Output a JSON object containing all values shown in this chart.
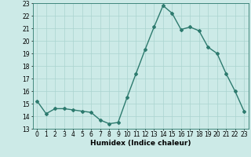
{
  "x": [
    0,
    1,
    2,
    3,
    4,
    5,
    6,
    7,
    8,
    9,
    10,
    11,
    12,
    13,
    14,
    15,
    16,
    17,
    18,
    19,
    20,
    21,
    22,
    23
  ],
  "y": [
    15.2,
    14.2,
    14.6,
    14.6,
    14.5,
    14.4,
    14.3,
    13.7,
    13.4,
    13.5,
    15.5,
    17.4,
    19.3,
    21.1,
    22.8,
    22.2,
    20.9,
    21.1,
    20.8,
    19.5,
    19.0,
    17.4,
    16.0,
    14.4
  ],
  "line_color": "#2d7a6e",
  "marker": "D",
  "marker_size": 2.0,
  "bg_color": "#cceae7",
  "grid_color": "#aad4d0",
  "xlabel": "Humidex (Indice chaleur)",
  "xlim": [
    -0.5,
    23.5
  ],
  "ylim": [
    13,
    23
  ],
  "yticks": [
    13,
    14,
    15,
    16,
    17,
    18,
    19,
    20,
    21,
    22,
    23
  ],
  "xticks": [
    0,
    1,
    2,
    3,
    4,
    5,
    6,
    7,
    8,
    9,
    10,
    11,
    12,
    13,
    14,
    15,
    16,
    17,
    18,
    19,
    20,
    21,
    22,
    23
  ],
  "tick_fontsize": 5.5,
  "xlabel_fontsize": 6.5,
  "line_width": 1.0
}
